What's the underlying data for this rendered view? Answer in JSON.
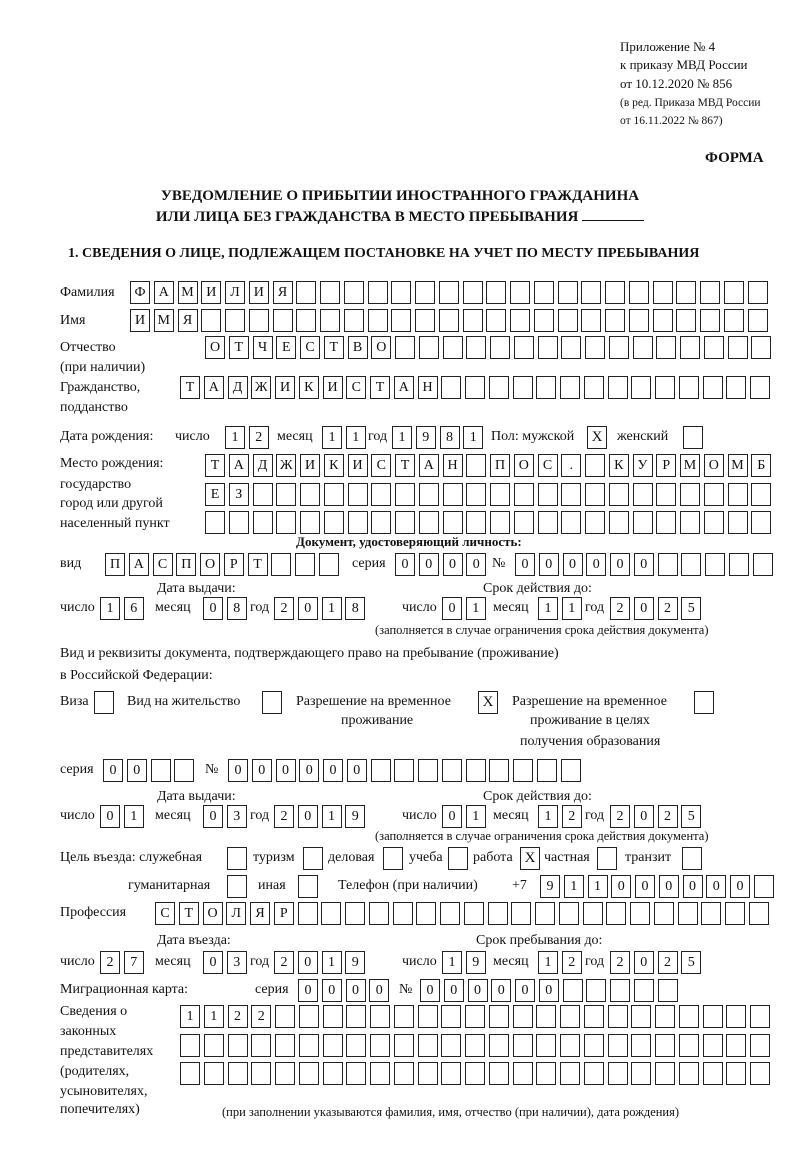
{
  "header": {
    "line1": "Приложение № 4",
    "line2": "к приказу МВД России",
    "line3": "от 10.12.2020 № 856",
    "line4": "(в ред. Приказа МВД России",
    "line5": "от 16.11.2022 № 867)",
    "forma": "ФОРМА"
  },
  "title": {
    "line1": "УВЕДОМЛЕНИЕ О ПРИБЫТИИ ИНОСТРАННОГО ГРАЖДАНИНА",
    "line2": "ИЛИ ЛИЦА БЕЗ ГРАЖДАНСТВА В МЕСТО ПРЕБЫВАНИЯ"
  },
  "section1": {
    "title": "1. СВЕДЕНИЯ О ЛИЦЕ, ПОДЛЕЖАЩЕМ ПОСТАНОВКЕ НА УЧЕТ ПО МЕСТУ ПРЕБЫВАНИЯ"
  },
  "labels": {
    "surname": "Фамилия",
    "name": "Имя",
    "patronymic": "Отчество",
    "if_any": "(при наличии)",
    "citizenship": "Гражданство,",
    "subject": "подданство",
    "dob": "Дата рождения:",
    "day": "число",
    "month": "месяц",
    "year": "год",
    "sex": "Пол: мужской",
    "female": "женский",
    "pob": "Место рождения:",
    "state": "государство",
    "city": "город или другой",
    "settlement": "населенный пункт",
    "id_doc": "Документ, удостоверяющий личность:",
    "kind": "вид",
    "series": "серия",
    "number": "№",
    "issue_date": "Дата выдачи:",
    "valid_until": "Срок действия до:",
    "valid_note": "(заполняется в случае ограничения срока действия документа)",
    "stay_doc1": "Вид и реквизиты документа, подтверждающего право на пребывание (проживание)",
    "stay_doc2": "в Российской Федерации:",
    "visa": "Виза",
    "residence": "Вид на жительство",
    "trp1": "Разрешение на временное",
    "trp2": "проживание",
    "trpe1": "Разрешение на временное",
    "trpe2": "проживание в целях",
    "trpe3": "получения образования",
    "purpose": "Цель въезда: служебная",
    "tourism": "туризм",
    "business": "деловая",
    "study": "учеба",
    "work": "работа",
    "private": "частная",
    "transit": "транзит",
    "humanitarian": "гуманитарная",
    "other": "иная",
    "phone": "Телефон (при наличии)",
    "phone_prefix": "+7",
    "profession": "Профессия",
    "entry_date": "Дата въезда:",
    "stay_until": "Срок пребывания до:",
    "migration_card": "Миграционная карта:",
    "rep1": "Сведения о",
    "rep2": "законных",
    "rep3": "представителях",
    "rep4": "(родителях,",
    "rep5": "усыновителях,",
    "rep6": "попечителях)",
    "rep_note": "(при заполнении указываются фамилия, имя, отчество (при наличии), дата рождения)"
  },
  "values": {
    "surname": "ФАМИЛИЯ",
    "name": "ИМЯ",
    "patronymic": "ОТЧЕСТВО",
    "citizenship": "ТАДЖИКИСТАН",
    "dob_day": "12",
    "dob_month": "11",
    "dob_year": "1981",
    "sex_male": "X",
    "sex_female": "",
    "pob1": "ТАДЖИКИСТАН ПОС. КУРМОМБ",
    "pob2": "ЕЗ",
    "pob3": "",
    "id_kind": "ПАСПОРТ",
    "id_series": "0000",
    "id_number": "000000",
    "id_issue_day": "16",
    "id_issue_month": "08",
    "id_issue_year": "2018",
    "id_valid_day": "01",
    "id_valid_month": "11",
    "id_valid_year": "2025",
    "visa": "",
    "residence": "",
    "trp": "X",
    "trpe": "",
    "stay_series": "00",
    "stay_number": "000000",
    "stay_issue_day": "01",
    "stay_issue_month": "03",
    "stay_issue_year": "2019",
    "stay_valid_day": "01",
    "stay_valid_month": "12",
    "stay_valid_year": "2025",
    "p_service": "",
    "p_tourism": "",
    "p_business": "",
    "p_study": "",
    "p_work": "X",
    "p_private": "",
    "p_transit": "",
    "p_humanitarian": "",
    "p_other": "",
    "phone": "911000000",
    "profession": "СТОЛЯР",
    "entry_day": "27",
    "entry_month": "03",
    "entry_year": "2019",
    "until_day": "19",
    "until_month": "12",
    "until_year": "2025",
    "mc_series": "0000",
    "mc_number": "000000",
    "rep1": "1122",
    "rep2": "",
    "rep3": ""
  }
}
